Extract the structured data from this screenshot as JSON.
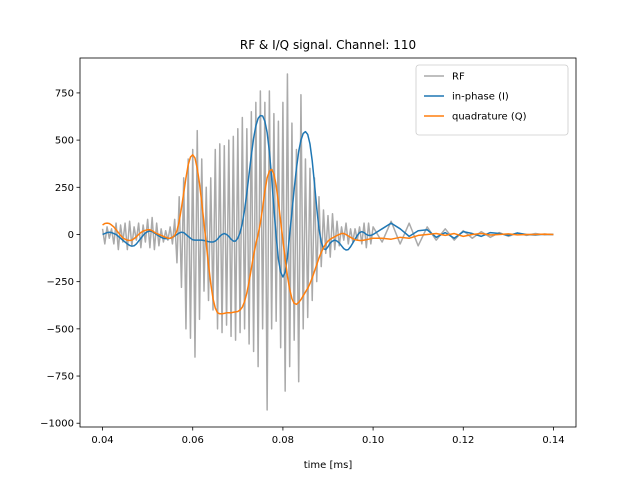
{
  "chart_data": {
    "type": "line",
    "title": "RF & I/Q signal. Channel: 110",
    "xlabel": "time [ms]",
    "legend": "upper right",
    "xlim": [
      0.035,
      0.145
    ],
    "ylim": [
      -1020,
      935
    ],
    "xticks": [
      0.04,
      0.06,
      0.08,
      {
        "value": 0.1,
        "label": "0.10"
      },
      0.12,
      0.14
    ],
    "yticks": [
      {
        "value": -1000,
        "label": "−1000"
      },
      {
        "value": -750,
        "label": "−750"
      },
      {
        "value": -500,
        "label": "−500"
      },
      {
        "value": -250,
        "label": "−250"
      },
      0,
      250,
      500,
      750
    ],
    "x": [
      0.04,
      0.0405,
      0.041,
      0.0415,
      0.042,
      0.0425,
      0.043,
      0.0435,
      0.044,
      0.0445,
      0.045,
      0.0455,
      0.046,
      0.0465,
      0.047,
      0.0475,
      0.048,
      0.0485,
      0.049,
      0.0495,
      0.05,
      0.0505,
      0.051,
      0.0515,
      0.052,
      0.0525,
      0.053,
      0.0535,
      0.054,
      0.0545,
      0.055,
      0.0555,
      0.056,
      0.0565,
      0.057,
      0.0575,
      0.058,
      0.0585,
      0.059,
      0.0595,
      0.06,
      0.0605,
      0.061,
      0.0615,
      0.062,
      0.0625,
      0.063,
      0.0635,
      0.064,
      0.0645,
      0.065,
      0.0655,
      0.066,
      0.0665,
      0.067,
      0.0675,
      0.068,
      0.0685,
      0.069,
      0.0695,
      0.07,
      0.0705,
      0.071,
      0.0715,
      0.072,
      0.0725,
      0.073,
      0.0735,
      0.074,
      0.0745,
      0.075,
      0.0755,
      0.076,
      0.0765,
      0.077,
      0.0775,
      0.078,
      0.0785,
      0.079,
      0.0795,
      0.08,
      0.0805,
      0.081,
      0.0815,
      0.082,
      0.0825,
      0.083,
      0.0835,
      0.084,
      0.0845,
      0.085,
      0.0855,
      0.086,
      0.0865,
      0.087,
      0.0875,
      0.088,
      0.0885,
      0.089,
      0.0895,
      0.09,
      0.0905,
      0.091,
      0.0915,
      0.092,
      0.0925,
      0.093,
      0.0935,
      0.094,
      0.0945,
      0.095,
      0.0955,
      0.096,
      0.0965,
      0.097,
      0.0975,
      0.098,
      0.0985,
      0.099,
      0.0995,
      0.1,
      0.102,
      0.104,
      0.106,
      0.108,
      0.11,
      0.112,
      0.114,
      0.116,
      0.118,
      0.12,
      0.122,
      0.124,
      0.126,
      0.128,
      0.13,
      0.132,
      0.134,
      0.136,
      0.138,
      0.14
    ],
    "series": [
      {
        "name": "RF",
        "color": "#aaaaaa",
        "values": [
          30,
          -50,
          40,
          -20,
          30,
          -50,
          60,
          -80,
          50,
          -40,
          60,
          -80,
          70,
          -60,
          40,
          -30,
          60,
          -70,
          50,
          -40,
          80,
          -70,
          90,
          -80,
          60,
          -60,
          30,
          -40,
          20,
          -30,
          40,
          -50,
          80,
          -150,
          200,
          -280,
          300,
          -500,
          400,
          -550,
          450,
          -650,
          550,
          -450,
          400,
          -300,
          250,
          -350,
          300,
          -400,
          450,
          -500,
          480,
          -520,
          470,
          -480,
          500,
          -540,
          520,
          -560,
          560,
          -520,
          620,
          -500,
          560,
          -580,
          650,
          -620,
          700,
          -700,
          760,
          -500,
          700,
          -930,
          760,
          -500,
          640,
          -460,
          600,
          -600,
          700,
          -830,
          850,
          -700,
          590,
          -560,
          450,
          -780,
          740,
          -500,
          400,
          -440,
          350,
          -350,
          300,
          -250,
          200,
          -170,
          130,
          -100,
          100,
          -120,
          110,
          -80,
          70,
          -60,
          40,
          -30,
          60,
          -50,
          30,
          -40,
          30,
          -30,
          40,
          -50,
          60,
          -70,
          60,
          -50,
          40,
          -40,
          70,
          -50,
          60,
          -60,
          40,
          -30,
          30,
          -30,
          20,
          -20,
          15,
          -15,
          10,
          -10,
          8,
          -5,
          5,
          -2,
          0
        ]
      },
      {
        "name": "in-phase (I)",
        "color": "#1f77b4",
        "values": [
          0,
          5,
          10,
          12,
          10,
          5,
          0,
          -10,
          -20,
          -30,
          -40,
          -50,
          -58,
          -62,
          -60,
          -50,
          -35,
          -20,
          -5,
          8,
          15,
          18,
          15,
          8,
          0,
          -8,
          -15,
          -20,
          -22,
          -22,
          -20,
          -15,
          -8,
          0,
          8,
          12,
          10,
          0,
          -10,
          -20,
          -28,
          -30,
          -30,
          -30,
          -30,
          -32,
          -35,
          -38,
          -40,
          -40,
          -35,
          -25,
          -10,
          0,
          5,
          0,
          -10,
          -25,
          -35,
          -35,
          -20,
          10,
          60,
          130,
          220,
          320,
          420,
          510,
          575,
          615,
          630,
          628,
          600,
          540,
          440,
          300,
          140,
          -10,
          -130,
          -200,
          -225,
          -200,
          -120,
          0,
          120,
          240,
          350,
          440,
          500,
          535,
          545,
          530,
          480,
          390,
          270,
          140,
          30,
          -40,
          -75,
          -80,
          -65,
          -45,
          -35,
          -30,
          -35,
          -45,
          -60,
          -75,
          -82,
          -80,
          -65,
          -45,
          -25,
          -5,
          10,
          15,
          10,
          0,
          -5,
          -5,
          0,
          30,
          60,
          30,
          -10,
          20,
          25,
          -15,
          10,
          -20,
          15,
          5,
          -10,
          10,
          5,
          -5,
          8,
          0,
          -3,
          2,
          0
        ]
      },
      {
        "name": "quadrature (Q)",
        "color": "#ff7f0e",
        "values": [
          50,
          58,
          60,
          58,
          50,
          40,
          25,
          10,
          -5,
          -18,
          -25,
          -30,
          -32,
          -30,
          -22,
          -12,
          0,
          10,
          18,
          22,
          25,
          25,
          20,
          12,
          5,
          0,
          -5,
          -10,
          -15,
          -20,
          -20,
          -15,
          -5,
          20,
          70,
          140,
          220,
          300,
          370,
          410,
          422,
          405,
          350,
          270,
          170,
          60,
          -50,
          -160,
          -260,
          -340,
          -390,
          -415,
          -420,
          -420,
          -418,
          -415,
          -415,
          -415,
          -412,
          -410,
          -408,
          -400,
          -385,
          -355,
          -310,
          -250,
          -180,
          -110,
          -50,
          0,
          60,
          140,
          230,
          300,
          335,
          345,
          320,
          260,
          170,
          70,
          -30,
          -130,
          -220,
          -290,
          -340,
          -365,
          -370,
          -360,
          -345,
          -325,
          -305,
          -285,
          -260,
          -230,
          -195,
          -160,
          -125,
          -95,
          -70,
          -50,
          -35,
          -25,
          -18,
          -12,
          -5,
          0,
          5,
          5,
          0,
          -8,
          -15,
          -22,
          -28,
          -30,
          -32,
          -32,
          -30,
          -28,
          -25,
          -22,
          -20,
          -20,
          -25,
          -15,
          -20,
          -5,
          0,
          5,
          -5,
          5,
          -10,
          0,
          5,
          -3,
          0,
          3,
          -2,
          0,
          0,
          2,
          0
        ]
      }
    ]
  }
}
